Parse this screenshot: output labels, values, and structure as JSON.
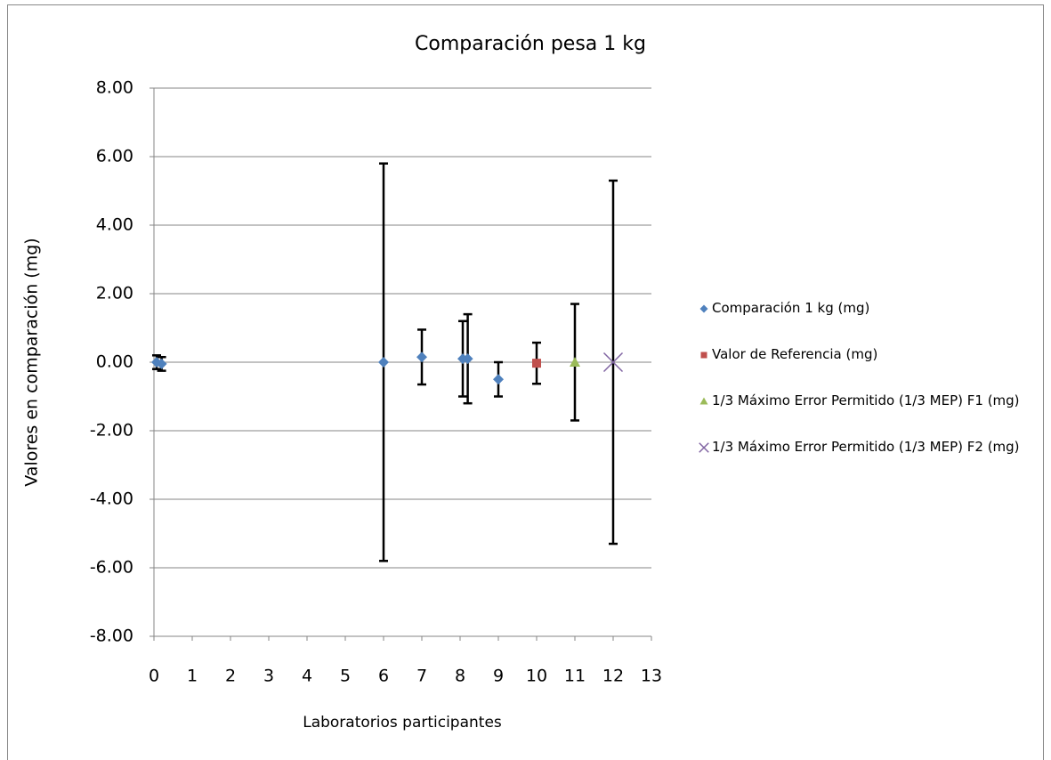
{
  "chart_data": {
    "type": "scatter",
    "title": "Comparación pesa 1 kg",
    "xlabel": "Laboratorios participantes",
    "ylabel": "Valores en comparación (mg)",
    "xlim": [
      0,
      13
    ],
    "xticks": [
      0,
      1,
      2,
      3,
      4,
      5,
      6,
      7,
      8,
      9,
      10,
      11,
      12,
      13
    ],
    "ylim": [
      -8,
      8
    ],
    "yticks": [
      {
        "value": -8,
        "label": "-8.00"
      },
      {
        "value": -6,
        "label": "-6.00"
      },
      {
        "value": -4,
        "label": "-4.00"
      },
      {
        "value": -2,
        "label": "-2.00"
      },
      {
        "value": 0,
        "label": "0.00"
      },
      {
        "value": 2,
        "label": "2.00"
      },
      {
        "value": 4,
        "label": "4.00"
      },
      {
        "value": 6,
        "label": "6.00"
      },
      {
        "value": 8,
        "label": "8.00"
      }
    ],
    "grid": true,
    "legend": "right",
    "series": [
      {
        "name": "Comparación 1 kg (mg)",
        "color": "#4f81bd",
        "marker": "diamond",
        "x": [
          0.07,
          0.2,
          6,
          7,
          8.07,
          8.2,
          9
        ],
        "values": [
          0,
          -0.05,
          0,
          0.15,
          0.1,
          0.1,
          -0.5
        ],
        "errors": [
          0.2,
          0.2,
          5.8,
          0.8,
          1.1,
          1.3,
          0.5
        ]
      },
      {
        "name": "Valor de Referencia (mg)",
        "color": "#c0504d",
        "marker": "square",
        "x": [
          10
        ],
        "values": [
          -0.03
        ],
        "errors": [
          0.6
        ]
      },
      {
        "name": "1/3 Máximo Error Permitido (1/3 MEP) F1 (mg)",
        "color": "#9bbb59",
        "marker": "triangle",
        "x": [
          11
        ],
        "values": [
          0
        ],
        "errors": [
          1.7
        ]
      },
      {
        "name": "1/3 Máximo Error Permitido (1/3 MEP) F2 (mg)",
        "color": "#8064a2",
        "marker": "x",
        "x": [
          12
        ],
        "values": [
          0
        ],
        "errors": [
          5.3
        ]
      }
    ]
  }
}
